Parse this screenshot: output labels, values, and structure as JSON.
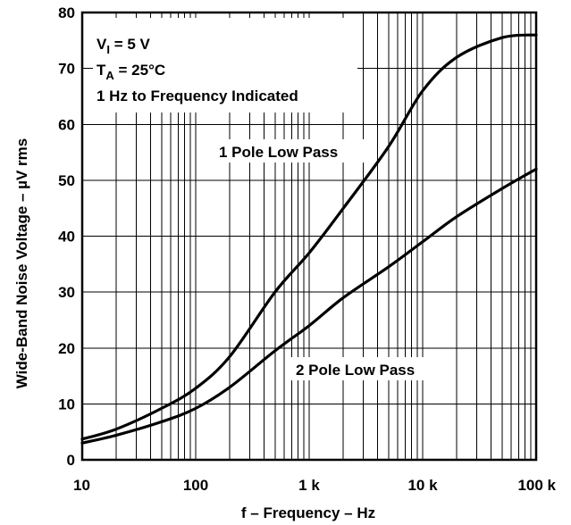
{
  "chart_data": {
    "type": "line",
    "title": "",
    "xlabel": "f – Frequency – Hz",
    "ylabel": "Wide-Band Noise Voltage – µV rms",
    "x_scale": "log",
    "xlim": [
      10,
      100000
    ],
    "ylim": [
      0,
      80
    ],
    "grid": true,
    "x_ticks": [
      {
        "value": 10,
        "label": "10"
      },
      {
        "value": 100,
        "label": "100"
      },
      {
        "value": 1000,
        "label": "1 k"
      },
      {
        "value": 10000,
        "label": "10 k"
      },
      {
        "value": 100000,
        "label": "100 k"
      }
    ],
    "y_ticks": [
      {
        "value": 0,
        "label": "0"
      },
      {
        "value": 10,
        "label": "10"
      },
      {
        "value": 20,
        "label": "20"
      },
      {
        "value": 30,
        "label": "30"
      },
      {
        "value": 40,
        "label": "40"
      },
      {
        "value": 50,
        "label": "50"
      },
      {
        "value": 60,
        "label": "60"
      },
      {
        "value": 70,
        "label": "70"
      },
      {
        "value": 80,
        "label": "80"
      }
    ],
    "conditions": {
      "line1": {
        "main": "V",
        "sub": "I",
        "rest": " = 5 V"
      },
      "line2": {
        "main": "T",
        "sub": "A",
        "rest": " = 25°C"
      },
      "line3": "1 Hz to Frequency Indicated"
    },
    "series": [
      {
        "name": "1 Pole Low Pass",
        "x": [
          10,
          20,
          50,
          100,
          200,
          500,
          1000,
          2000,
          5000,
          10000,
          20000,
          50000,
          100000
        ],
        "y": [
          3.7,
          5.5,
          9.2,
          12.8,
          18.5,
          30,
          37,
          45,
          56,
          66,
          72,
          75.5,
          76
        ]
      },
      {
        "name": "2 Pole Low Pass",
        "x": [
          10,
          20,
          50,
          100,
          200,
          500,
          1000,
          2000,
          5000,
          10000,
          20000,
          50000,
          100000
        ],
        "y": [
          3,
          4.4,
          6.8,
          9.2,
          13,
          19.5,
          24,
          29,
          34.5,
          39,
          43.5,
          48.5,
          52
        ]
      }
    ]
  }
}
